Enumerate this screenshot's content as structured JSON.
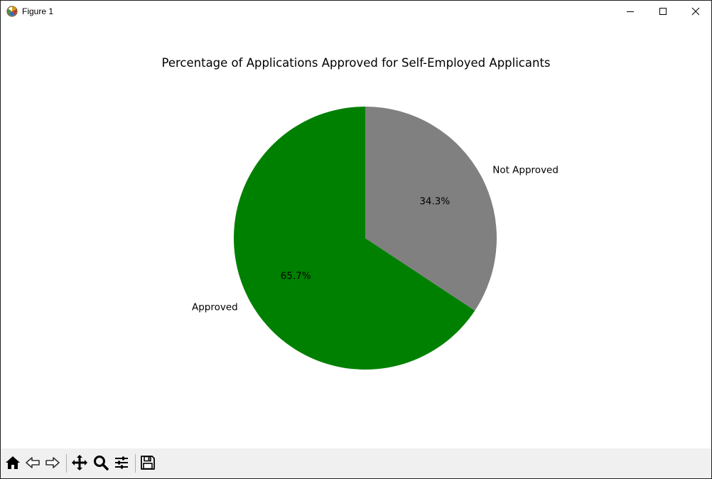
{
  "window": {
    "title": "Figure 1",
    "icons": {
      "app": "matplotlib-icon",
      "minimize": "minimize-icon",
      "maximize": "maximize-icon",
      "close": "close-icon"
    }
  },
  "toolbar": {
    "buttons": [
      {
        "name": "home-icon",
        "label": "Home"
      },
      {
        "name": "back-icon",
        "label": "Back"
      },
      {
        "name": "forward-icon",
        "label": "Forward"
      },
      {
        "name": "pan-icon",
        "label": "Pan"
      },
      {
        "name": "zoom-icon",
        "label": "Zoom"
      },
      {
        "name": "configure-subplots-icon",
        "label": "Configure subplots"
      },
      {
        "name": "save-icon",
        "label": "Save"
      }
    ]
  },
  "chart_data": {
    "type": "pie",
    "title": "Percentage of Applications Approved for Self-Employed Applicants",
    "labels": [
      "Approved",
      "Not Approved"
    ],
    "values": [
      65.7,
      34.3
    ],
    "autopct_labels": [
      "65.7%",
      "34.3%"
    ],
    "colors": [
      "#008000",
      "#808080"
    ],
    "startangle": 90,
    "direction": "counterclockwise"
  }
}
